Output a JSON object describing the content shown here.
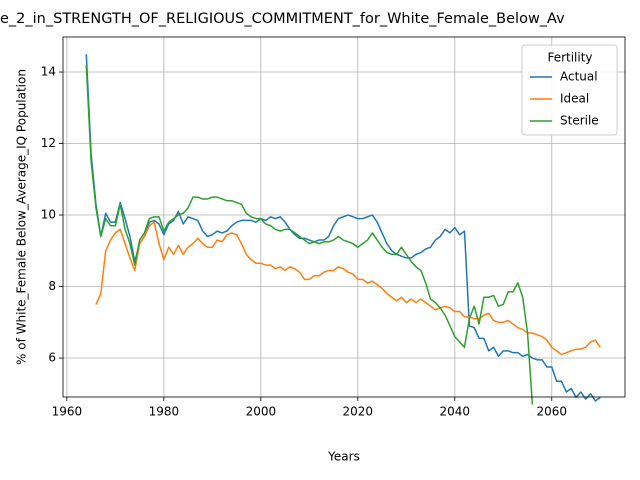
{
  "chart_data": {
    "type": "line",
    "title": "e_2_in_STRENGTH_OF_RELIGIOUS_COMMITMENT_for_White_Female_Below_Av",
    "x_label": "Years",
    "y_label": "% of White_Female Below_Average_IQ Population",
    "legend_title": "Fertility",
    "legend_position": "upper right",
    "grid": true,
    "xlim": [
      1959.2,
      2075.1
    ],
    "ylim": [
      4.91,
      14.98
    ],
    "xticks": [
      1960,
      1980,
      2000,
      2020,
      2040,
      2060
    ],
    "yticks": [
      6,
      8,
      10,
      12,
      14
    ],
    "x": [
      1964,
      1965,
      1966,
      1967,
      1968,
      1969,
      1970,
      1971,
      1972,
      1973,
      1974,
      1975,
      1976,
      1977,
      1978,
      1979,
      1980,
      1981,
      1982,
      1983,
      1984,
      1985,
      1986,
      1987,
      1988,
      1989,
      1990,
      1991,
      1992,
      1993,
      1994,
      1995,
      1996,
      1997,
      1998,
      1999,
      2000,
      2001,
      2002,
      2003,
      2004,
      2005,
      2006,
      2007,
      2008,
      2009,
      2010,
      2011,
      2012,
      2013,
      2014,
      2015,
      2016,
      2017,
      2018,
      2019,
      2020,
      2021,
      2022,
      2023,
      2024,
      2025,
      2026,
      2027,
      2028,
      2029,
      2030,
      2031,
      2032,
      2033,
      2034,
      2035,
      2036,
      2037,
      2038,
      2039,
      2040,
      2041,
      2042,
      2043,
      2044,
      2045,
      2046,
      2047,
      2048,
      2049,
      2050,
      2051,
      2052,
      2053,
      2054,
      2055,
      2056,
      2057,
      2058,
      2059,
      2060,
      2061,
      2062,
      2063,
      2064,
      2065,
      2066,
      2067,
      2068,
      2069,
      2070
    ],
    "series": [
      {
        "name": "Actual",
        "color": "#1f77b4",
        "values": [
          14.5,
          11.7,
          10.3,
          9.4,
          10.05,
          9.8,
          9.8,
          10.35,
          9.9,
          9.4,
          8.7,
          9.2,
          9.4,
          9.8,
          9.85,
          9.75,
          9.45,
          9.75,
          9.85,
          10.1,
          9.75,
          9.95,
          9.9,
          9.85,
          9.55,
          9.4,
          9.45,
          9.55,
          9.5,
          9.55,
          9.7,
          9.8,
          9.85,
          9.85,
          9.85,
          9.8,
          9.9,
          9.85,
          9.95,
          9.9,
          9.95,
          9.8,
          9.6,
          9.45,
          9.35,
          9.35,
          9.3,
          9.25,
          9.3,
          9.3,
          9.4,
          9.7,
          9.9,
          9.95,
          10.0,
          9.95,
          9.9,
          9.9,
          9.95,
          10.0,
          9.8,
          9.5,
          9.2,
          9.0,
          8.9,
          8.85,
          8.8,
          8.8,
          8.9,
          8.95,
          9.05,
          9.1,
          9.3,
          9.4,
          9.6,
          9.5,
          9.65,
          9.45,
          9.55,
          6.9,
          6.85,
          6.55,
          6.55,
          6.2,
          6.3,
          6.05,
          6.2,
          6.2,
          6.15,
          6.15,
          6.05,
          6.1,
          6.0,
          5.95,
          5.95,
          5.75,
          5.75,
          5.35,
          5.35,
          5.05,
          5.15,
          4.9,
          5.05,
          4.85,
          5.0,
          4.8,
          4.9
        ]
      },
      {
        "name": "Ideal",
        "color": "#ff7f0e",
        "values": [
          null,
          null,
          7.5,
          7.8,
          9.0,
          9.3,
          9.5,
          9.6,
          9.2,
          8.8,
          8.45,
          9.2,
          9.4,
          9.7,
          9.8,
          9.2,
          8.75,
          9.1,
          8.9,
          9.15,
          8.9,
          9.1,
          9.2,
          9.35,
          9.2,
          9.1,
          9.1,
          9.3,
          9.25,
          9.45,
          9.5,
          9.45,
          9.2,
          8.9,
          8.75,
          8.65,
          8.65,
          8.6,
          8.6,
          8.5,
          8.55,
          8.45,
          8.55,
          8.5,
          8.4,
          8.2,
          8.2,
          8.3,
          8.3,
          8.4,
          8.45,
          8.45,
          8.55,
          8.5,
          8.4,
          8.35,
          8.2,
          8.2,
          8.1,
          8.15,
          8.05,
          7.95,
          7.8,
          7.7,
          7.6,
          7.7,
          7.55,
          7.65,
          7.55,
          7.65,
          7.55,
          7.45,
          7.35,
          7.4,
          7.45,
          7.4,
          7.3,
          7.3,
          7.15,
          7.15,
          7.1,
          7.1,
          7.2,
          7.25,
          7.05,
          7.0,
          7.0,
          7.05,
          6.95,
          6.85,
          6.8,
          6.7,
          6.7,
          6.65,
          6.6,
          6.5,
          6.3,
          6.2,
          6.1,
          6.15,
          6.2,
          6.25,
          6.25,
          6.3,
          6.45,
          6.5,
          6.3
        ]
      },
      {
        "name": "Sterile",
        "color": "#2ca02c",
        "values": [
          14.2,
          11.5,
          10.2,
          9.4,
          9.9,
          9.7,
          9.7,
          10.3,
          9.6,
          9.2,
          8.6,
          9.3,
          9.5,
          9.9,
          9.95,
          9.95,
          9.55,
          9.8,
          9.9,
          10.0,
          10.05,
          10.2,
          10.5,
          10.5,
          10.45,
          10.45,
          10.5,
          10.5,
          10.45,
          10.4,
          10.4,
          10.35,
          10.3,
          10.05,
          9.95,
          9.9,
          9.9,
          9.75,
          9.7,
          9.6,
          9.55,
          9.6,
          9.6,
          9.5,
          9.4,
          9.3,
          9.2,
          9.25,
          9.2,
          9.25,
          9.25,
          9.3,
          9.4,
          9.3,
          9.25,
          9.2,
          9.1,
          9.2,
          9.3,
          9.5,
          9.3,
          9.1,
          8.95,
          8.9,
          8.9,
          9.1,
          8.9,
          8.7,
          8.55,
          8.45,
          8.1,
          7.65,
          7.55,
          7.4,
          7.2,
          6.9,
          6.6,
          6.45,
          6.3,
          7.1,
          7.45,
          6.95,
          7.7,
          7.7,
          7.75,
          7.45,
          7.5,
          7.85,
          7.85,
          8.1,
          7.7,
          6.7,
          4.7,
          null,
          null,
          null,
          null,
          null,
          null,
          null,
          null,
          null,
          null,
          null,
          null,
          null,
          null
        ]
      }
    ]
  }
}
